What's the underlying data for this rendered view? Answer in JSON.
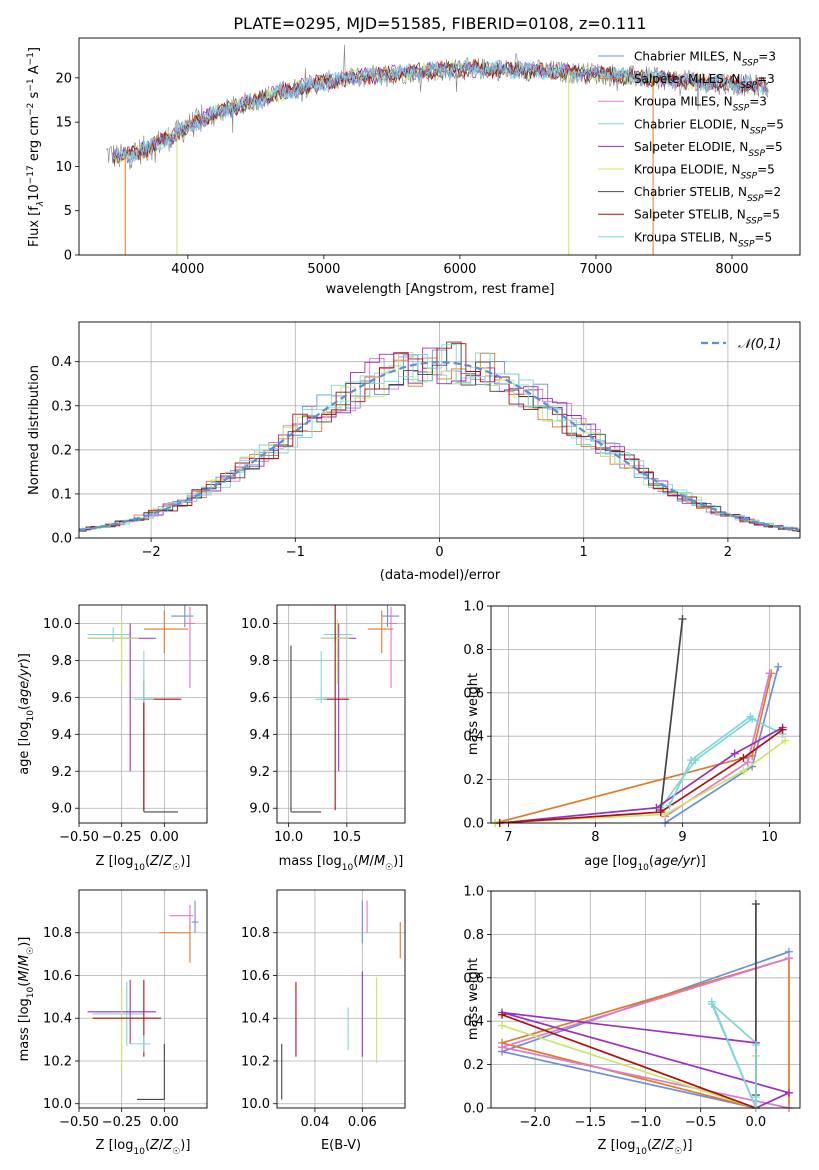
{
  "figure": {
    "title": "PLATE=0295, MJD=51585, FIBERID=0108, z=0.111"
  },
  "colors": {
    "Chabrier MILES": "#6b8fdc",
    "Salpeter MILES": "#e07a2a",
    "Kroupa MILES": "#e07ac8",
    "Chabrier ELODIE": "#7fd6d0",
    "Salpeter ELODIE": "#9b30c0",
    "Kroupa ELODIE": "#c8e86a",
    "Chabrier STELIB": "#444444",
    "Salpeter STELIB": "#aa1111",
    "Kroupa STELIB": "#7fd6e0",
    "data": "#808080",
    "gaussian": "#5b8fd6"
  },
  "chart_data": [
    {
      "id": "spectrum",
      "type": "line",
      "title": "PLATE=0295, MJD=51585, FIBERID=0108, z=0.111",
      "xlabel": "wavelength [Angstrom, rest frame]",
      "ylabel": "Flux [f_λ10^-17 erg cm^-2 s^-1 A^-1]",
      "xlim": [
        3200,
        8500
      ],
      "ylim": [
        0,
        24.5
      ],
      "xticks": [
        4000,
        5000,
        6000,
        7000,
        8000
      ],
      "yticks": [
        0,
        5,
        10,
        15,
        20
      ],
      "grid": false,
      "legend_position": "right",
      "legend": [
        {
          "label": "Chabrier MILES, N_SSP=3",
          "name": "Chabrier MILES"
        },
        {
          "label": "Salpeter MILES, N_SSP=3",
          "name": "Salpeter MILES"
        },
        {
          "label": "Kroupa MILES, N_SSP=3",
          "name": "Kroupa MILES"
        },
        {
          "label": "Chabrier ELODIE, N_SSP=5",
          "name": "Chabrier ELODIE"
        },
        {
          "label": "Salpeter ELODIE, N_SSP=5",
          "name": "Salpeter ELODIE"
        },
        {
          "label": "Kroupa ELODIE, N_SSP=5",
          "name": "Kroupa ELODIE"
        },
        {
          "label": "Chabrier STELIB, N_SSP=2",
          "name": "Chabrier STELIB"
        },
        {
          "label": "Salpeter STELIB, N_SSP=5",
          "name": "Salpeter STELIB"
        },
        {
          "label": "Kroupa STELIB, N_SSP=5",
          "name": "Kroupa STELIB"
        }
      ],
      "continuum": {
        "x": [
          3400,
          3500,
          3600,
          3700,
          3800,
          3900,
          4000,
          4200,
          4400,
          4600,
          4800,
          5000,
          5200,
          5400,
          5600,
          5800,
          6000,
          6200,
          6400,
          6600,
          6800,
          7000,
          7200,
          7400,
          7600,
          7800,
          8000,
          8270
        ],
        "y": [
          11.5,
          11.0,
          11.5,
          12.0,
          12.8,
          13.5,
          14.5,
          16.0,
          17.0,
          18.0,
          18.8,
          19.5,
          20.0,
          20.3,
          20.6,
          20.8,
          21.0,
          21.0,
          20.9,
          20.8,
          20.6,
          20.5,
          20.2,
          20.0,
          19.7,
          19.5,
          19.3,
          19.0
        ]
      },
      "dropouts": [
        {
          "name": "Salpeter MILES",
          "x": 3540,
          "to": 0
        },
        {
          "name": "Kroupa ELODIE",
          "x": 3920,
          "to": 0
        },
        {
          "name": "Kroupa ELODIE",
          "x": 6800,
          "to": 0
        },
        {
          "name": "Salpeter MILES",
          "x": 7420,
          "to": 0
        }
      ]
    },
    {
      "id": "residuals",
      "type": "line",
      "xlabel": "(data-model)/error",
      "ylabel": "Normed distribution",
      "xlim": [
        -2.5,
        2.5
      ],
      "ylim": [
        0,
        0.49
      ],
      "xticks": [
        -2,
        -1,
        0,
        1,
        2
      ],
      "yticks": [
        0.0,
        0.1,
        0.2,
        0.3,
        0.4
      ],
      "grid": true,
      "legend_position": "upper right",
      "series": [
        {
          "name": "N(0,1)",
          "label": "𝒩(0,1)",
          "style": "dashed"
        }
      ]
    },
    {
      "id": "age-vs-Z",
      "type": "scatter",
      "xlabel": "Z [log10(Z/Z☉)]",
      "ylabel": "age  [log10(age/yr)]",
      "xlim": [
        -0.5,
        0.25
      ],
      "ylim": [
        8.92,
        10.1
      ],
      "xticks": [
        -0.5,
        -0.25,
        0.0
      ],
      "yticks": [
        9.0,
        9.2,
        9.4,
        9.6,
        9.8,
        10.0
      ],
      "grid": true,
      "points": [
        {
          "name": "Chabrier MILES",
          "x": 0.12,
          "y": 10.04,
          "xerr": [
            0.08,
            0.05
          ],
          "yerr": [
            0.06,
            0.06
          ]
        },
        {
          "name": "Salpeter MILES",
          "x": 0.0,
          "y": 9.97,
          "xerr": [
            0.12,
            0.14
          ],
          "yerr": [
            0.13,
            0.1
          ]
        },
        {
          "name": "Kroupa MILES",
          "x": 0.15,
          "y": 10.0,
          "xerr": [
            0.03,
            0.03
          ],
          "yerr": [
            0.35,
            0.09
          ]
        },
        {
          "name": "Chabrier ELODIE",
          "x": -0.3,
          "y": 9.94,
          "xerr": [
            0.15,
            0.1
          ],
          "yerr": [
            0.04,
            0.04
          ]
        },
        {
          "name": "Salpeter ELODIE",
          "x": -0.2,
          "y": 9.92,
          "xerr": [
            0.25,
            0.15
          ],
          "yerr": [
            0.72,
            0.08
          ]
        },
        {
          "name": "Kroupa ELODIE",
          "x": -0.25,
          "y": 9.92,
          "xerr": [
            0.2,
            0.1
          ],
          "yerr": [
            0.25,
            0.1
          ]
        },
        {
          "name": "Chabrier STELIB",
          "x": -0.12,
          "y": 8.98,
          "xerr": [
            0.0,
            0.2
          ],
          "yerr": [
            0.0,
            0.6
          ]
        },
        {
          "name": "Salpeter STELIB",
          "x": -0.12,
          "y": 9.59,
          "xerr": [
            0.0,
            0.22
          ],
          "yerr": [
            0.6,
            0.1
          ]
        },
        {
          "name": "Kroupa STELIB",
          "x": -0.12,
          "y": 9.59,
          "xerr": [
            0.06,
            0.06
          ],
          "yerr": [
            0.02,
            0.26
          ]
        }
      ]
    },
    {
      "id": "age-vs-mass",
      "type": "scatter",
      "xlabel": "mass [log10(M/M☉)]",
      "xlim": [
        9.9,
        11.0
      ],
      "ylim": [
        8.92,
        10.1
      ],
      "xticks": [
        10.0,
        10.5
      ],
      "yticks": [
        9.0,
        9.2,
        9.4,
        9.6,
        9.8,
        10.0
      ],
      "grid": true,
      "points": [
        {
          "name": "Chabrier MILES",
          "x": 10.85,
          "y": 10.04,
          "xerr": [
            0.05,
            0.1
          ],
          "yerr": [
            0.06,
            0.06
          ]
        },
        {
          "name": "Salpeter MILES",
          "x": 10.8,
          "y": 9.97,
          "xerr": [
            0.12,
            0.1
          ],
          "yerr": [
            0.13,
            0.1
          ]
        },
        {
          "name": "Kroupa MILES",
          "x": 10.88,
          "y": 10.0,
          "xerr": [
            0.05,
            0.05
          ],
          "yerr": [
            0.35,
            0.09
          ]
        },
        {
          "name": "Chabrier ELODIE",
          "x": 10.4,
          "y": 9.94,
          "xerr": [
            0.1,
            0.15
          ],
          "yerr": [
            0.04,
            0.04
          ]
        },
        {
          "name": "Salpeter ELODIE",
          "x": 10.43,
          "y": 9.92,
          "xerr": [
            0.15,
            0.15
          ],
          "yerr": [
            0.72,
            0.08
          ]
        },
        {
          "name": "Kroupa ELODIE",
          "x": 10.42,
          "y": 9.92,
          "xerr": [
            0.15,
            0.1
          ],
          "yerr": [
            0.25,
            0.1
          ]
        },
        {
          "name": "Chabrier STELIB",
          "x": 10.02,
          "y": 8.98,
          "xerr": [
            0.0,
            0.26
          ],
          "yerr": [
            0.0,
            0.9
          ]
        },
        {
          "name": "Salpeter STELIB",
          "x": 10.4,
          "y": 9.59,
          "xerr": [
            0.1,
            0.12
          ],
          "yerr": [
            0.6,
            0.6
          ]
        },
        {
          "name": "Kroupa STELIB",
          "x": 10.28,
          "y": 9.59,
          "xerr": [
            0.05,
            0.05
          ],
          "yerr": [
            0.02,
            0.26
          ]
        }
      ]
    },
    {
      "id": "weight-vs-age",
      "type": "line",
      "xlabel": "age  [log10(age/yr)]",
      "ylabel": "mass weight",
      "xlim": [
        6.8,
        10.35
      ],
      "ylim": [
        0,
        1.0
      ],
      "xticks": [
        7,
        8,
        9,
        10
      ],
      "yticks": [
        0.0,
        0.2,
        0.4,
        0.6,
        0.8,
        1.0
      ],
      "grid": true,
      "series": [
        {
          "name": "Chabrier MILES",
          "x": [
            8.8,
            9.8,
            10.1
          ],
          "y": [
            0.0,
            0.26,
            0.72
          ]
        },
        {
          "name": "Salpeter MILES",
          "x": [
            6.85,
            9.8,
            10.02
          ],
          "y": [
            0.0,
            0.31,
            0.69
          ]
        },
        {
          "name": "Kroupa MILES",
          "x": [
            8.8,
            9.75,
            10.0
          ],
          "y": [
            0.03,
            0.28,
            0.69
          ]
        },
        {
          "name": "Chabrier ELODIE",
          "x": [
            8.75,
            9.15,
            9.8,
            10.15
          ],
          "y": [
            0.07,
            0.29,
            0.48,
            0.41
          ]
        },
        {
          "name": "Salpeter ELODIE",
          "x": [
            6.9,
            8.7,
            9.6,
            10.15
          ],
          "y": [
            0.0,
            0.07,
            0.32,
            0.44
          ]
        },
        {
          "name": "Kroupa ELODIE",
          "x": [
            6.85,
            8.8,
            9.7,
            10.18
          ],
          "y": [
            0.0,
            0.04,
            0.24,
            0.38
          ]
        },
        {
          "name": "Chabrier STELIB",
          "x": [
            8.75,
            9.0
          ],
          "y": [
            0.06,
            0.94
          ]
        },
        {
          "name": "Salpeter STELIB",
          "x": [
            6.9,
            8.75,
            9.7,
            10.15
          ],
          "y": [
            0.0,
            0.05,
            0.3,
            0.43
          ]
        },
        {
          "name": "Kroupa STELIB",
          "x": [
            8.85,
            9.1,
            9.78
          ],
          "y": [
            0.08,
            0.29,
            0.49
          ]
        }
      ]
    },
    {
      "id": "mass-vs-Z",
      "type": "scatter",
      "xlabel": "Z [log10(Z/Z☉)]",
      "ylabel": "mass [log10(M/M☉)]",
      "xlim": [
        -0.5,
        0.25
      ],
      "ylim": [
        9.98,
        11.0
      ],
      "xticks": [
        -0.5,
        -0.25,
        0.0
      ],
      "yticks": [
        10.0,
        10.2,
        10.4,
        10.6,
        10.8
      ],
      "grid": true,
      "points": [
        {
          "name": "Chabrier MILES",
          "x": 0.18,
          "y": 10.85,
          "xerr": [
            0.02,
            0.02
          ],
          "yerr": [
            0.05,
            0.1
          ]
        },
        {
          "name": "Salpeter MILES",
          "x": 0.15,
          "y": 10.8,
          "xerr": [
            0.18,
            0.0
          ],
          "yerr": [
            0.14,
            0.08
          ]
        },
        {
          "name": "Kroupa MILES",
          "x": 0.15,
          "y": 10.88,
          "xerr": [
            0.12,
            0.02
          ],
          "yerr": [
            0.05,
            0.05
          ]
        },
        {
          "name": "Chabrier ELODIE",
          "x": -0.22,
          "y": 10.42,
          "xerr": [
            0.2,
            0.1
          ],
          "yerr": [
            0.15,
            0.15
          ]
        },
        {
          "name": "Salpeter ELODIE",
          "x": -0.2,
          "y": 10.43,
          "xerr": [
            0.25,
            0.15
          ],
          "yerr": [
            0.15,
            0.15
          ]
        },
        {
          "name": "Kroupa ELODIE",
          "x": -0.25,
          "y": 10.4,
          "xerr": [
            0.2,
            0.1
          ],
          "yerr": [
            0.25,
            0.15
          ]
        },
        {
          "name": "Chabrier STELIB",
          "x": 0.0,
          "y": 10.02,
          "xerr": [
            0.16,
            0.0
          ],
          "yerr": [
            0.0,
            0.26
          ]
        },
        {
          "name": "Salpeter STELIB",
          "x": -0.12,
          "y": 10.4,
          "xerr": [
            0.3,
            0.1
          ],
          "yerr": [
            0.18,
            0.18
          ]
        },
        {
          "name": "Kroupa STELIB",
          "x": -0.12,
          "y": 10.28,
          "xerr": [
            0.08,
            0.04
          ],
          "yerr": [
            0.04,
            0.04
          ]
        }
      ]
    },
    {
      "id": "mass-vs-EBV",
      "type": "scatter",
      "xlabel": "E(B-V)",
      "xlim": [
        0.024,
        0.078
      ],
      "ylim": [
        9.98,
        11.0
      ],
      "xticks": [
        0.04,
        0.06
      ],
      "yticks": [
        10.0,
        10.2,
        10.4,
        10.6,
        10.8
      ],
      "grid": true,
      "points": [
        {
          "name": "Chabrier MILES",
          "x": 0.06,
          "y": 10.85,
          "yerr": [
            0.1,
            0.1
          ]
        },
        {
          "name": "Kroupa MILES",
          "x": 0.062,
          "y": 10.88,
          "yerr": [
            0.08,
            0.07
          ]
        },
        {
          "name": "Salpeter MILES",
          "x": 0.076,
          "y": 10.8,
          "yerr": [
            0.12,
            0.05
          ]
        },
        {
          "name": "Chabrier ELODIE",
          "x": 0.054,
          "y": 10.35,
          "yerr": [
            0.1,
            0.1
          ]
        },
        {
          "name": "Salpeter ELODIE",
          "x": 0.06,
          "y": 10.42,
          "yerr": [
            0.2,
            0.2
          ]
        },
        {
          "name": "Kroupa ELODIE",
          "x": 0.066,
          "y": 10.39,
          "yerr": [
            0.2,
            0.2
          ]
        },
        {
          "name": "Chabrier STELIB",
          "x": 0.026,
          "y": 10.15,
          "yerr": [
            0.13,
            0.13
          ]
        },
        {
          "name": "Salpeter STELIB",
          "x": 0.032,
          "y": 10.39,
          "yerr": [
            0.17,
            0.18
          ]
        }
      ]
    },
    {
      "id": "weight-vs-Z",
      "type": "line",
      "xlabel": "Z [log10(Z/Z☉)]",
      "ylabel": "mass weight",
      "xlim": [
        -2.4,
        0.4
      ],
      "ylim": [
        0,
        1.0
      ],
      "xticks": [
        -2.0,
        -1.5,
        -1.0,
        -0.5,
        0.0
      ],
      "yticks": [
        0.0,
        0.2,
        0.4,
        0.6,
        0.8,
        1.0
      ],
      "grid": true,
      "series": [
        {
          "name": "Chabrier MILES",
          "x": [
            0.0,
            -2.3,
            0.3
          ],
          "y": [
            0.0,
            0.26,
            0.72
          ]
        },
        {
          "name": "Salpeter MILES",
          "x": [
            0.0,
            -2.3,
            0.3,
            0.3
          ],
          "y": [
            0.0,
            0.3,
            0.69,
            0.0
          ]
        },
        {
          "name": "Kroupa MILES",
          "x": [
            0.3,
            -2.3,
            0.3
          ],
          "y": [
            0.0,
            0.28,
            0.69
          ]
        },
        {
          "name": "Chabrier ELODIE",
          "x": [
            0.0,
            0.0,
            -0.4,
            0.0
          ],
          "y": [
            0.05,
            0.3,
            0.48,
            0.0
          ]
        },
        {
          "name": "Salpeter ELODIE",
          "x": [
            0.0,
            -2.3,
            0.3,
            0.0
          ],
          "y": [
            0.3,
            0.44,
            0.07,
            0.0
          ]
        },
        {
          "name": "Kroupa ELODIE",
          "x": [
            -2.3,
            0.0,
            0.0
          ],
          "y": [
            0.38,
            0.0,
            0.24
          ]
        },
        {
          "name": "Chabrier STELIB",
          "x": [
            0.0,
            0.0
          ],
          "y": [
            0.06,
            0.94
          ]
        },
        {
          "name": "Salpeter STELIB",
          "x": [
            -2.3,
            0.0
          ],
          "y": [
            0.43,
            0.0
          ]
        },
        {
          "name": "Kroupa STELIB",
          "x": [
            -0.4,
            0.0,
            0.0
          ],
          "y": [
            0.49,
            0.0,
            0.29
          ]
        }
      ]
    }
  ]
}
